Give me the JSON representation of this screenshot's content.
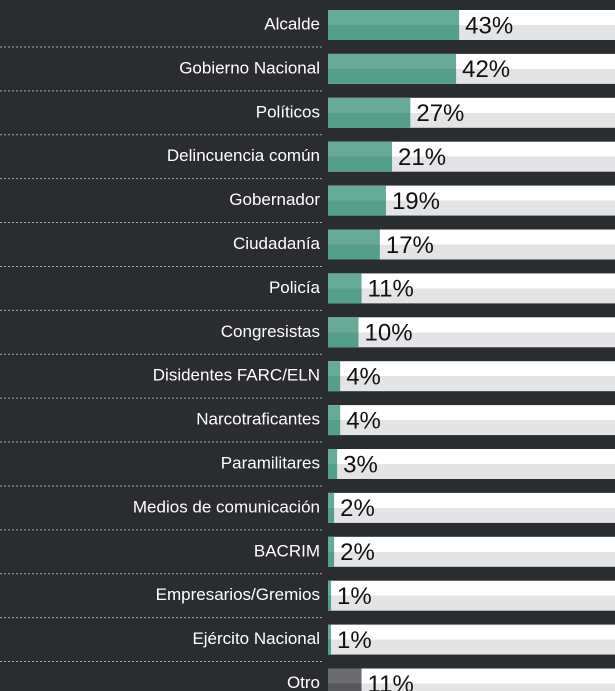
{
  "chart_data": {
    "type": "barh",
    "categories": [
      "Alcalde",
      "Gobierno Nacional",
      "Políticos",
      "Delincuencia común",
      "Gobernador",
      "Ciudadanía",
      "Policía",
      "Congresistas",
      "Disidentes FARC/ELN",
      "Narcotraficantes",
      "Paramilitares",
      "Medios de comunicación",
      "BACRIM",
      "Empresarios/Gremios",
      "Ejército Nacional",
      "Otro"
    ],
    "values": [
      43,
      42,
      27,
      21,
      19,
      17,
      11,
      10,
      4,
      4,
      3,
      2,
      2,
      1,
      1,
      11
    ],
    "value_labels": [
      "43%",
      "42%",
      "27%",
      "21%",
      "19%",
      "17%",
      "11%",
      "10%",
      "4%",
      "4%",
      "3%",
      "2%",
      "2%",
      "1%",
      "1%",
      "11%"
    ],
    "colors": [
      "#559e88",
      "#559e88",
      "#559e88",
      "#559e88",
      "#559e88",
      "#559e88",
      "#559e88",
      "#559e88",
      "#559e88",
      "#559e88",
      "#559e88",
      "#559e88",
      "#559e88",
      "#559e88",
      "#559e88",
      "#58585a"
    ],
    "xlim": [
      0,
      100
    ]
  }
}
